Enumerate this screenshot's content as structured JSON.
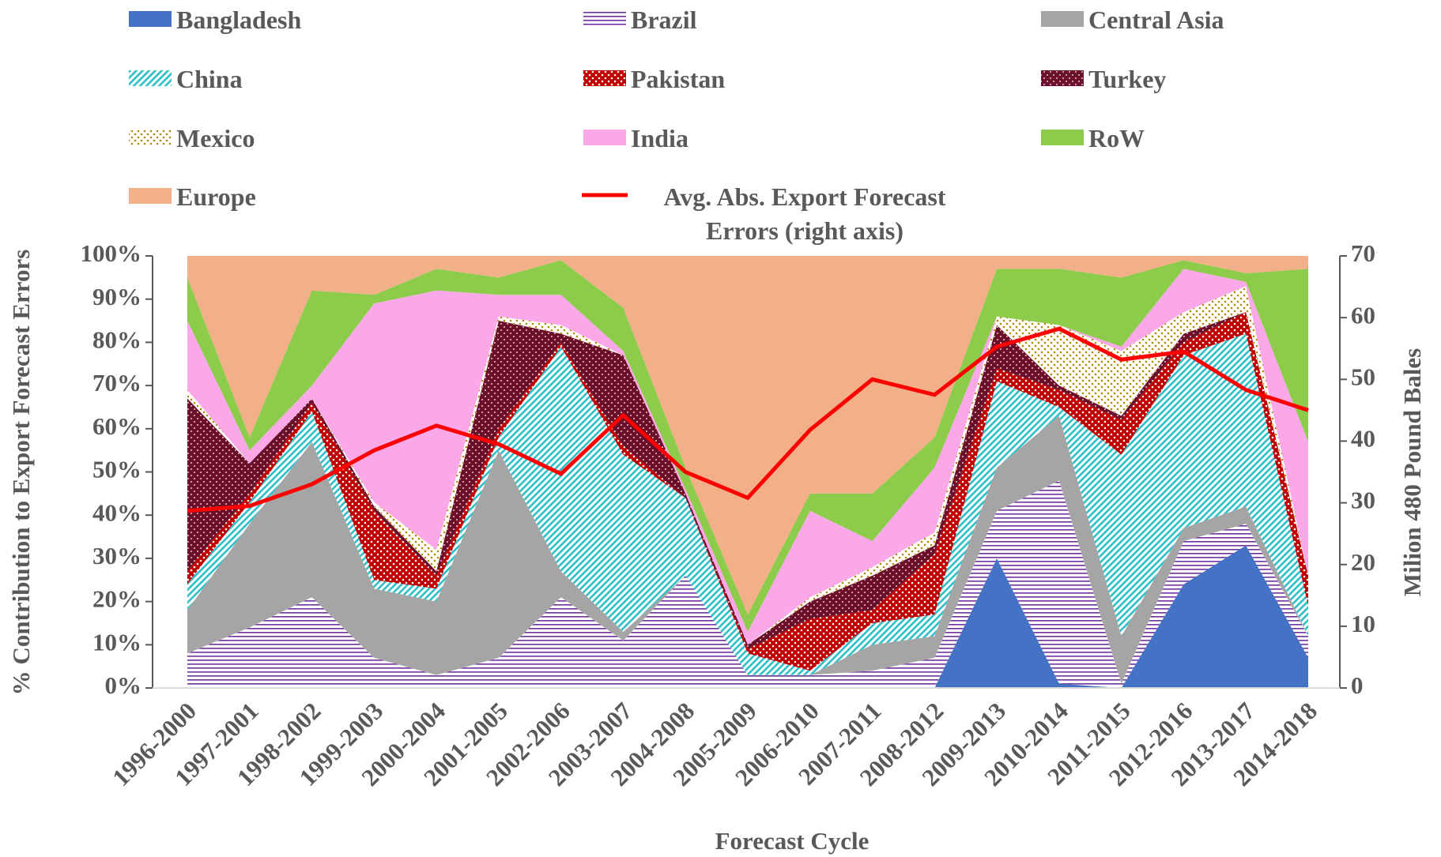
{
  "chart_data": {
    "type": "stacked_area",
    "x_label": "Forecast Cycle",
    "y_label": "% Contribution to Export Forecast Errors",
    "y2_label": "Milion 480 Pound Bales",
    "categories": [
      "1996-2000",
      "1997-2001",
      "1998-2002",
      "1999-2003",
      "2000-2004",
      "2001-2005",
      "2002-2006",
      "2003-2007",
      "2004-2008",
      "2005-2009",
      "2006-2010",
      "2007-2011",
      "2008-2012",
      "2009-2013",
      "2010-2014",
      "2011-2015",
      "2012-2016",
      "2013-2017",
      "2014-2018"
    ],
    "ylim": [
      0,
      100
    ],
    "yticks": [
      {
        "value": 0,
        "label": "0%"
      },
      {
        "value": 10,
        "label": "10%"
      },
      {
        "value": 20,
        "label": "20%"
      },
      {
        "value": 30,
        "label": "30%"
      },
      {
        "value": 40,
        "label": "40%"
      },
      {
        "value": 50,
        "label": "50%"
      },
      {
        "value": 60,
        "label": "60%"
      },
      {
        "value": 70,
        "label": "70%"
      },
      {
        "value": 80,
        "label": "80%"
      },
      {
        "value": 90,
        "label": "90%"
      },
      {
        "value": 100,
        "label": "100%"
      }
    ],
    "y2lim": [
      0,
      70
    ],
    "y2ticks": [
      0,
      10,
      20,
      30,
      40,
      50,
      60,
      70
    ],
    "series": [
      {
        "name": "Bangladesh",
        "color": "#4472c4",
        "pattern": "solid",
        "values": [
          0,
          0,
          0,
          0,
          0,
          0,
          0,
          0,
          0,
          0,
          0,
          0,
          0,
          30,
          1,
          0,
          24,
          33,
          7
        ]
      },
      {
        "name": "Brazil",
        "color": "#7030a0",
        "pattern": "hlines",
        "values": [
          8,
          14,
          21,
          7,
          3,
          7,
          21,
          11,
          26,
          3,
          3,
          4,
          7,
          11,
          47,
          1,
          10,
          5,
          5
        ]
      },
      {
        "name": "Central Asia",
        "color": "#a5a5a5",
        "pattern": "solid",
        "values": [
          10,
          24,
          36,
          16,
          17,
          48,
          6,
          2,
          0,
          0,
          0,
          6,
          5,
          10,
          15,
          11,
          3,
          4,
          0
        ]
      },
      {
        "name": "China",
        "color": "#2fbfc9",
        "pattern": "diag",
        "values": [
          6,
          5,
          7,
          2,
          3,
          3,
          52,
          41,
          18,
          5,
          1,
          5,
          5,
          20,
          2,
          42,
          40,
          40,
          7
        ]
      },
      {
        "name": "Pakistan",
        "color": "#c00000",
        "pattern": "check",
        "values": [
          3,
          2,
          2,
          16,
          3,
          2,
          1,
          2,
          0,
          1,
          12,
          3,
          14,
          3,
          4,
          8,
          3,
          5,
          7
        ]
      },
      {
        "name": "Turkey",
        "color": "#6b0f2a",
        "pattern": "dense",
        "values": [
          40,
          7,
          1,
          1,
          1,
          25,
          2,
          21,
          1,
          1,
          4,
          8,
          2,
          10,
          1,
          1,
          2,
          0,
          0
        ]
      },
      {
        "name": "Mexico",
        "color": "#b8860b",
        "pattern": "dots",
        "values": [
          2,
          0,
          0,
          1,
          5,
          1,
          2,
          0,
          0,
          0,
          1,
          2,
          3,
          2,
          14,
          15,
          5,
          6,
          0
        ]
      },
      {
        "name": "India",
        "color": "#fba8e8",
        "pattern": "solid",
        "values": [
          16,
          3,
          3,
          46,
          60,
          5,
          7,
          1,
          1,
          3,
          20,
          6,
          15,
          0,
          0,
          1,
          10,
          1,
          31
        ]
      },
      {
        "name": "RoW",
        "color": "#8ccc4a",
        "pattern": "solid",
        "values": [
          10,
          3,
          22,
          2,
          5,
          4,
          8,
          10,
          5,
          4,
          4,
          11,
          7,
          11,
          13,
          16,
          2,
          2,
          40
        ]
      },
      {
        "name": "Europe",
        "color": "#f2b088",
        "pattern": "solid",
        "values": [
          5,
          42,
          8,
          9,
          3,
          5,
          1,
          12,
          49,
          83,
          55,
          55,
          42,
          3,
          3,
          5,
          1,
          4,
          3
        ]
      },
      {
        "name": "Avg. Abs. Export Forecast Errors (right axis)",
        "color": "#ff0000",
        "type": "line",
        "axis": "y2",
        "values": [
          28.7,
          29.5,
          33,
          38.5,
          42.5,
          39.5,
          34.7,
          44.2,
          35,
          30.8,
          41.8,
          50,
          47.5,
          55.3,
          58.2,
          53.2,
          54.5,
          48.3,
          45
        ]
      }
    ]
  }
}
